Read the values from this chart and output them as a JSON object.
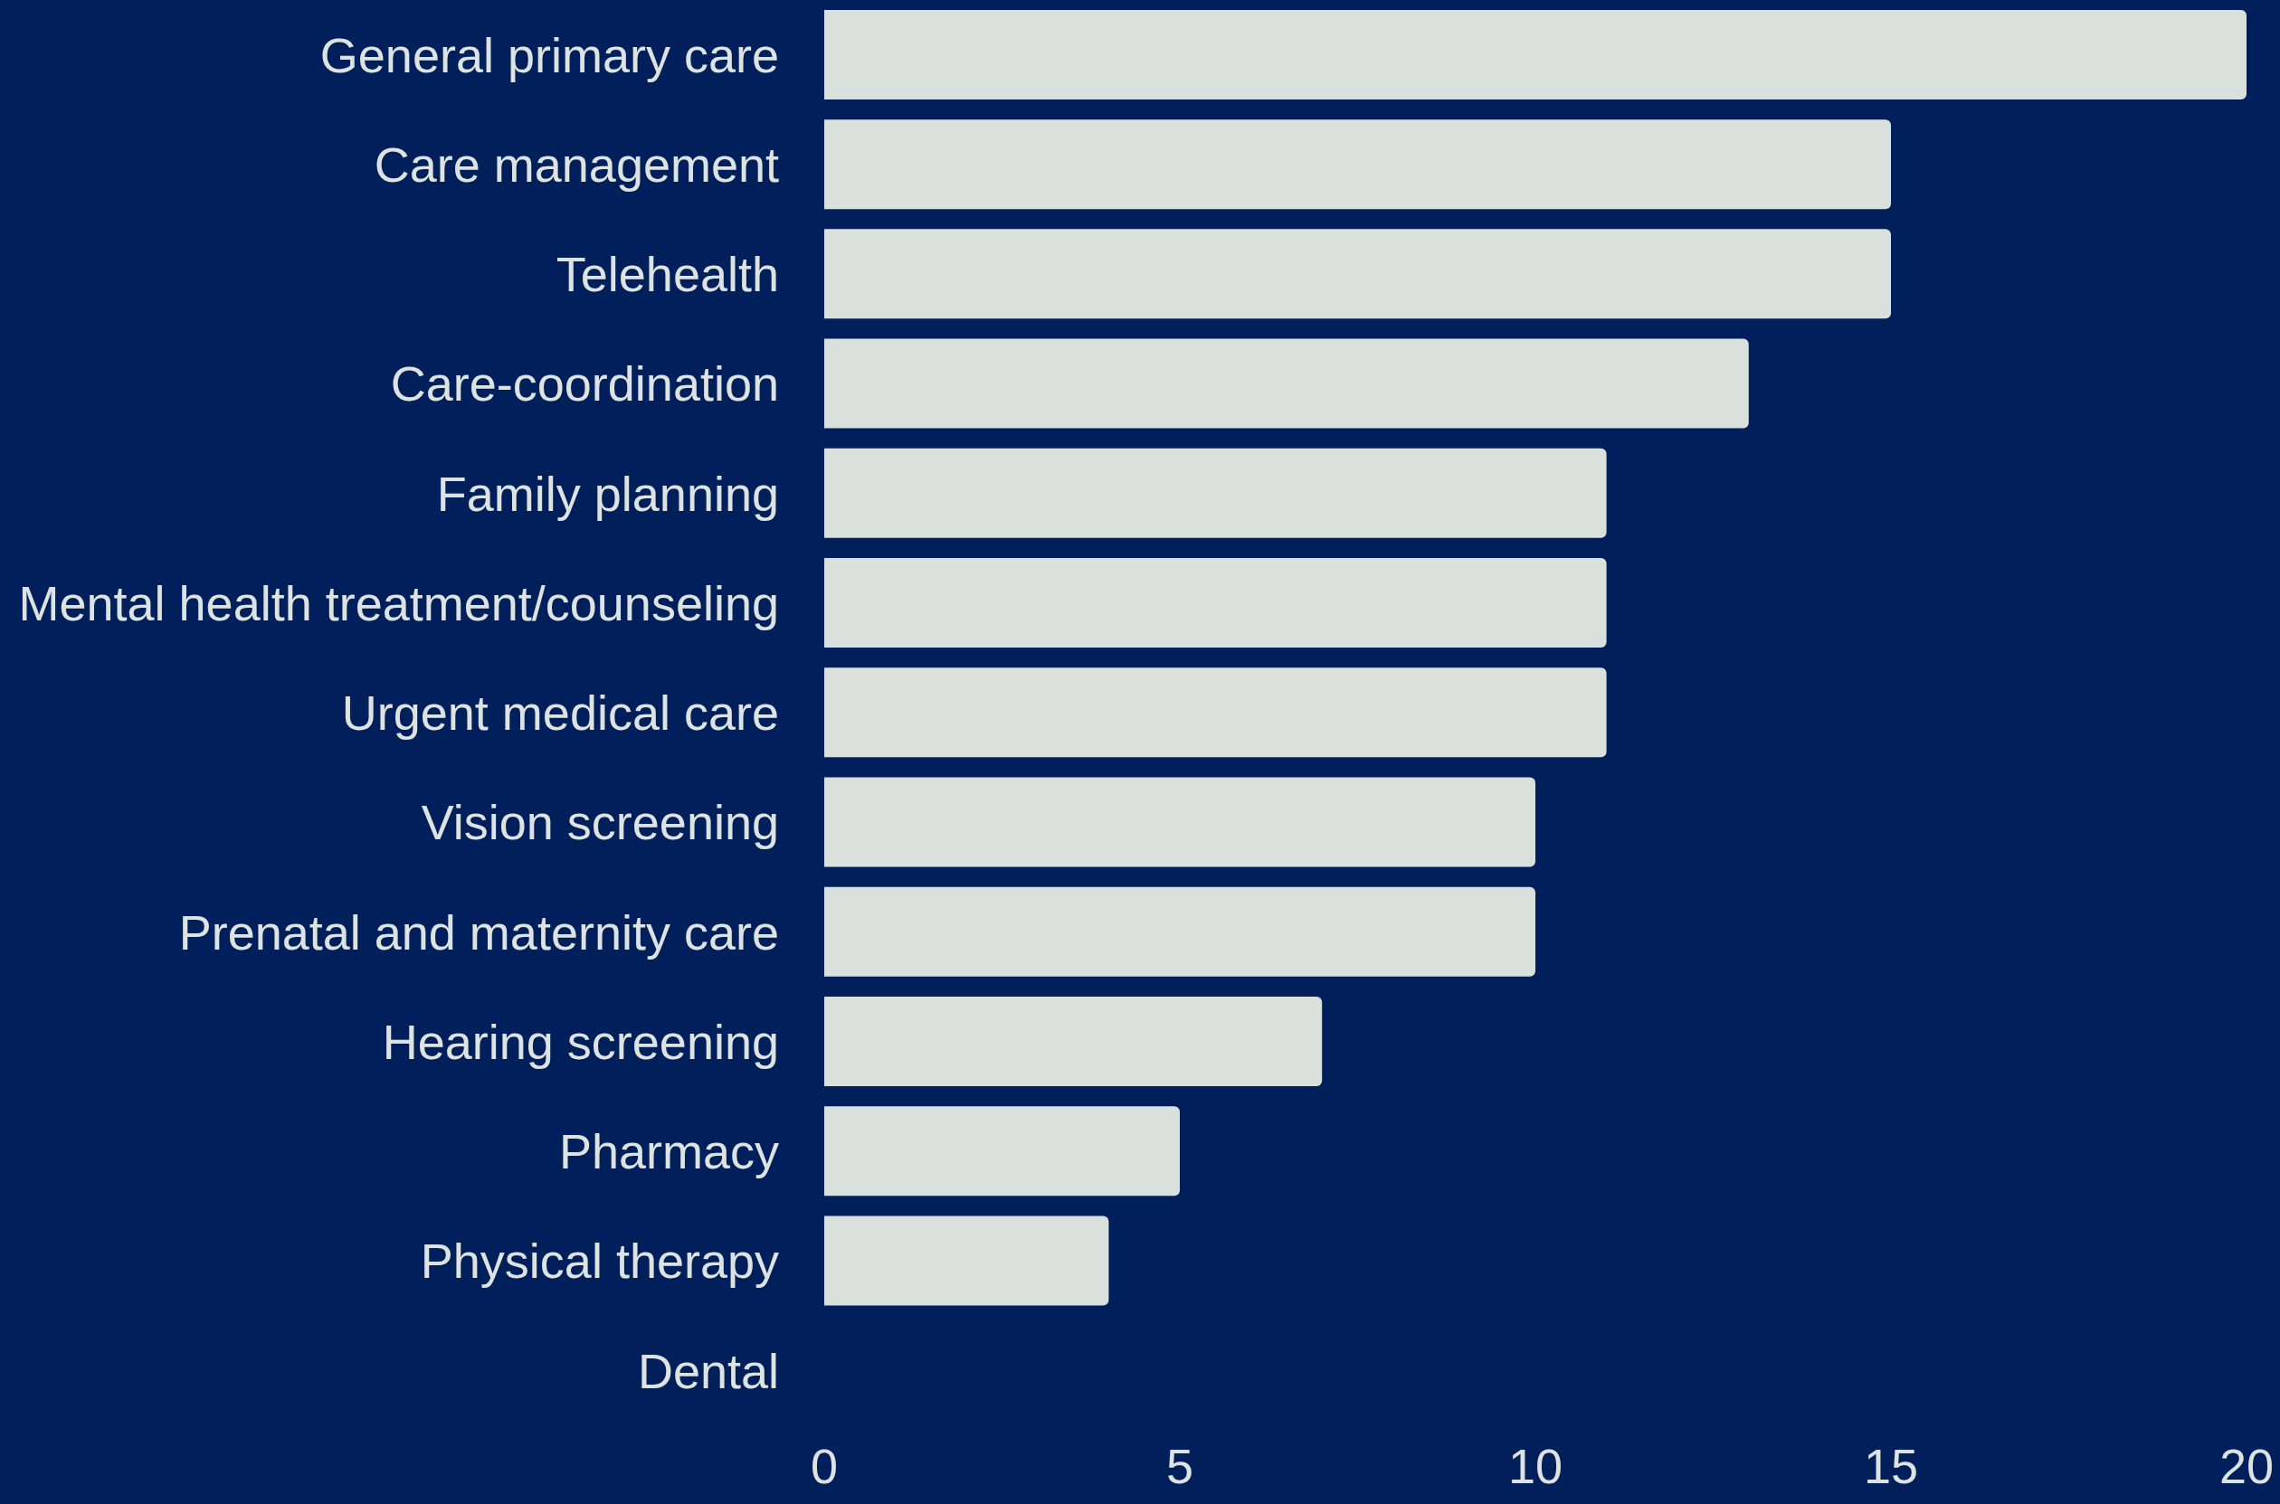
{
  "chart_data": {
    "type": "bar",
    "orientation": "horizontal",
    "categories": [
      "General primary care",
      "Care management",
      "Telehealth",
      "Care-coordination",
      "Family planning",
      "Mental health treatment/counseling",
      "Urgent medical care",
      "Vision screening",
      "Prenatal and maternity care",
      "Hearing screening",
      "Pharmacy",
      "Physical therapy",
      "Dental"
    ],
    "values": [
      20,
      15,
      15,
      13,
      11,
      11,
      11,
      10,
      10,
      7,
      5,
      4,
      0
    ],
    "color": "#dae0dc",
    "xlim": [
      0,
      20
    ],
    "xticks": [
      0,
      5,
      10,
      15,
      20
    ],
    "grid": false,
    "legend": false
  }
}
